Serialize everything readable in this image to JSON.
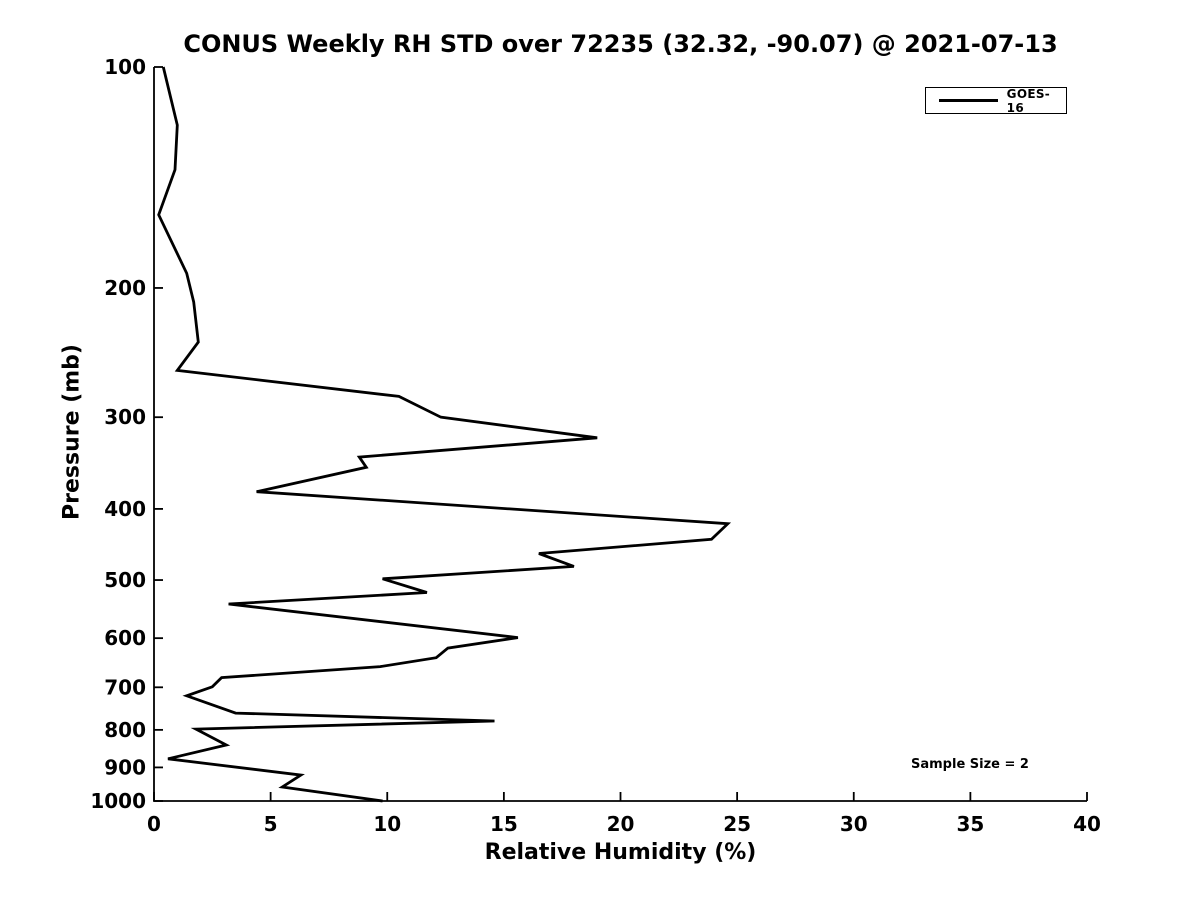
{
  "colors": {
    "line": "#000000",
    "background": "#ffffff",
    "text": "#000000"
  },
  "legend": {
    "position": "top-right",
    "entries": [
      {
        "label": "GOES-16",
        "color": "#000000"
      }
    ]
  },
  "chart_data": {
    "type": "line",
    "title": "CONUS Weekly RH STD over 72235 (32.32, -90.07) @ 2021-07-13",
    "xlabel": "Relative Humidity (%)",
    "ylabel": "Pressure (mb)",
    "annotation": "Sample Size = 2",
    "xlim": [
      0,
      40
    ],
    "ylim": [
      100,
      1000
    ],
    "y_scale": "log",
    "y_inverted": true,
    "grid": false,
    "x_ticks": [
      0,
      5,
      10,
      15,
      20,
      25,
      30,
      35,
      40
    ],
    "y_ticks": [
      100,
      200,
      300,
      400,
      500,
      600,
      700,
      800,
      900,
      1000
    ],
    "legend_position": "top-right",
    "series": [
      {
        "name": "GOES-16",
        "color": "#000000",
        "points_format": [
          "relative_humidity_pct",
          "pressure_mb"
        ],
        "points": [
          [
            0.4,
            100
          ],
          [
            1.0,
            120
          ],
          [
            0.9,
            138
          ],
          [
            0.2,
            159
          ],
          [
            1.4,
            191
          ],
          [
            1.7,
            209
          ],
          [
            1.9,
            237
          ],
          [
            1.0,
            259
          ],
          [
            10.5,
            281
          ],
          [
            12.3,
            300
          ],
          [
            19.0,
            320
          ],
          [
            8.8,
            340
          ],
          [
            9.1,
            351
          ],
          [
            4.4,
            379
          ],
          [
            24.6,
            419
          ],
          [
            23.9,
            440
          ],
          [
            16.5,
            460
          ],
          [
            18.0,
            479
          ],
          [
            9.8,
            498
          ],
          [
            11.7,
            520
          ],
          [
            3.2,
            539
          ],
          [
            15.6,
            599
          ],
          [
            12.6,
            619
          ],
          [
            12.1,
            638
          ],
          [
            9.7,
            656
          ],
          [
            2.9,
            679
          ],
          [
            2.5,
            699
          ],
          [
            1.4,
            719
          ],
          [
            3.5,
            759
          ],
          [
            14.6,
            778
          ],
          [
            1.8,
            798
          ],
          [
            3.1,
            839
          ],
          [
            0.6,
            876
          ],
          [
            6.3,
            922
          ],
          [
            5.5,
            957
          ],
          [
            9.8,
            1000
          ]
        ]
      }
    ]
  }
}
